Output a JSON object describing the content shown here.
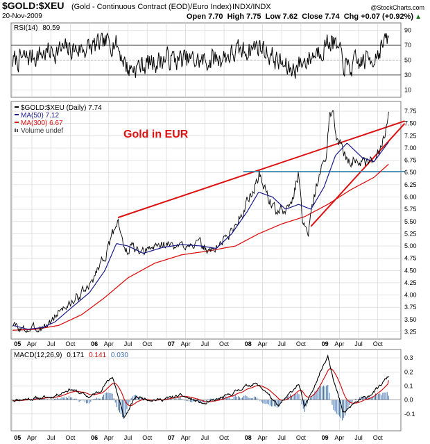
{
  "header": {
    "symbol": "$GOLD:$XEU",
    "description": "(Gold - Continuous Contract (EOD)/Euro Index)",
    "exchange": "INDX/INDX",
    "date": "20-Nov-2009",
    "credit": "@StockCharts.com",
    "quote_line": "Open 7.70  High 7.75  Low 7.62  Close 7.74  Chg +0.07 (+0.92%)",
    "quote_arrow": "▲"
  },
  "colors": {
    "price": "#000000",
    "ma50": "#1a1a8c",
    "ma300": "#dd1111",
    "trendline": "#dd1111",
    "support_line": "#3a8cb5",
    "rsi_bands": "#555555",
    "macd_line": "#000000",
    "signal_line": "#cc1111",
    "histogram": "#3d6fb0",
    "grid": "#d0d0d0",
    "annotation": "#dd1111"
  },
  "chart_data": [
    {
      "type": "line",
      "panel": "rsi",
      "label": "RSI(14)",
      "value_label": "80.59",
      "ylim": [
        0,
        100
      ],
      "yticks": [
        10,
        30,
        50,
        70,
        90
      ],
      "bands": [
        30,
        70
      ],
      "seed": 7,
      "anchors": [
        [
          2005.0,
          48
        ],
        [
          2005.5,
          62
        ],
        [
          2006.0,
          66
        ],
        [
          2006.33,
          76
        ],
        [
          2006.5,
          38
        ],
        [
          2007.0,
          52
        ],
        [
          2007.5,
          48
        ],
        [
          2008.0,
          62
        ],
        [
          2008.2,
          70
        ],
        [
          2008.6,
          36
        ],
        [
          2008.85,
          52
        ],
        [
          2009.15,
          78
        ],
        [
          2009.35,
          38
        ],
        [
          2009.7,
          55
        ],
        [
          2009.89,
          80.59
        ]
      ]
    },
    {
      "type": "line",
      "panel": "price",
      "title": "Gold in EUR",
      "legend": [
        {
          "label": "$GOLD:$XEU (Daily) 7.74",
          "color_key": "price"
        },
        {
          "label": "MA(50) 7.12",
          "color_key": "ma50"
        },
        {
          "label": "MA(300) 6.67",
          "color_key": "ma300"
        },
        {
          "label": "Volume undef",
          "color_key": "price"
        }
      ],
      "ylim": [
        3.1,
        7.95
      ],
      "yticks": [
        3.25,
        3.5,
        3.75,
        4.0,
        4.25,
        4.5,
        4.75,
        5.0,
        5.25,
        5.5,
        5.75,
        6.0,
        6.25,
        6.5,
        6.75,
        7.0,
        7.25,
        7.5,
        7.75
      ],
      "ytick_labels": [
        "3.25",
        "3.50",
        "3.75",
        "4.00",
        "4.25",
        "4.50",
        "4.75",
        "5.00",
        "5.25",
        "5.50",
        "5.75",
        "6.00",
        "6.25",
        "6.50",
        "6.75",
        "7.00",
        "7.25",
        "7.50",
        "7.75"
      ],
      "series": [
        {
          "name": "$GOLD:$XEU (Daily)",
          "color_key": "price",
          "seed": 3,
          "points": [
            [
              2005.0,
              3.4
            ],
            [
              2005.12,
              3.28
            ],
            [
              2005.25,
              3.3
            ],
            [
              2005.4,
              3.35
            ],
            [
              2005.5,
              3.45
            ],
            [
              2005.62,
              3.72
            ],
            [
              2005.75,
              3.8
            ],
            [
              2005.9,
              4.05
            ],
            [
              2006.0,
              4.15
            ],
            [
              2006.12,
              4.6
            ],
            [
              2006.25,
              4.95
            ],
            [
              2006.37,
              5.58
            ],
            [
              2006.46,
              4.85
            ],
            [
              2006.55,
              5.0
            ],
            [
              2006.67,
              4.8
            ],
            [
              2006.85,
              5.0
            ],
            [
              2007.0,
              5.05
            ],
            [
              2007.15,
              4.95
            ],
            [
              2007.3,
              5.1
            ],
            [
              2007.45,
              5.0
            ],
            [
              2007.58,
              4.88
            ],
            [
              2007.7,
              5.05
            ],
            [
              2007.85,
              5.3
            ],
            [
              2008.0,
              5.75
            ],
            [
              2008.12,
              6.1
            ],
            [
              2008.21,
              6.48
            ],
            [
              2008.3,
              6.1
            ],
            [
              2008.4,
              5.75
            ],
            [
              2008.55,
              5.7
            ],
            [
              2008.63,
              5.9
            ],
            [
              2008.72,
              6.5
            ],
            [
              2008.77,
              5.5
            ],
            [
              2008.85,
              5.35
            ],
            [
              2008.92,
              6.0
            ],
            [
              2009.0,
              6.5
            ],
            [
              2009.08,
              6.8
            ],
            [
              2009.13,
              7.82
            ],
            [
              2009.22,
              7.3
            ],
            [
              2009.33,
              6.8
            ],
            [
              2009.5,
              6.75
            ],
            [
              2009.6,
              6.62
            ],
            [
              2009.7,
              6.7
            ],
            [
              2009.8,
              7.05
            ],
            [
              2009.89,
              7.74
            ]
          ]
        },
        {
          "name": "MA(50)",
          "color_key": "ma50",
          "points": [
            [
              2005.0,
              3.38
            ],
            [
              2005.2,
              3.3
            ],
            [
              2005.4,
              3.34
            ],
            [
              2005.55,
              3.45
            ],
            [
              2005.75,
              3.72
            ],
            [
              2006.0,
              4.05
            ],
            [
              2006.2,
              4.5
            ],
            [
              2006.35,
              5.05
            ],
            [
              2006.5,
              5.0
            ],
            [
              2006.7,
              4.85
            ],
            [
              2006.95,
              4.97
            ],
            [
              2007.2,
              5.03
            ],
            [
              2007.45,
              5.0
            ],
            [
              2007.65,
              4.95
            ],
            [
              2007.85,
              5.25
            ],
            [
              2008.05,
              5.7
            ],
            [
              2008.2,
              6.1
            ],
            [
              2008.38,
              6.0
            ],
            [
              2008.55,
              5.75
            ],
            [
              2008.72,
              5.85
            ],
            [
              2008.88,
              5.75
            ],
            [
              2009.05,
              6.2
            ],
            [
              2009.2,
              6.85
            ],
            [
              2009.35,
              7.1
            ],
            [
              2009.55,
              6.8
            ],
            [
              2009.7,
              6.72
            ],
            [
              2009.89,
              7.12
            ]
          ]
        },
        {
          "name": "MA(300)",
          "color_key": "ma300",
          "points": [
            [
              2005.0,
              3.28
            ],
            [
              2005.3,
              3.3
            ],
            [
              2005.6,
              3.38
            ],
            [
              2005.9,
              3.6
            ],
            [
              2006.2,
              3.95
            ],
            [
              2006.5,
              4.35
            ],
            [
              2006.85,
              4.65
            ],
            [
              2007.2,
              4.82
            ],
            [
              2007.55,
              4.9
            ],
            [
              2007.9,
              5.0
            ],
            [
              2008.2,
              5.25
            ],
            [
              2008.5,
              5.45
            ],
            [
              2008.8,
              5.6
            ],
            [
              2009.1,
              5.85
            ],
            [
              2009.4,
              6.15
            ],
            [
              2009.7,
              6.4
            ],
            [
              2009.89,
              6.67
            ]
          ]
        }
      ],
      "trendlines": [
        {
          "name": "upper-trendline",
          "from": [
            2006.37,
            5.58
          ],
          "to": [
            2010.1,
            7.55
          ]
        },
        {
          "name": "lower-trendline",
          "from": [
            2008.88,
            5.4
          ],
          "to": [
            2010.1,
            7.5
          ]
        },
        {
          "name": "support-line",
          "from": [
            2008.0,
            6.52
          ],
          "to": [
            2010.1,
            6.52
          ],
          "color_key": "support_line"
        }
      ],
      "x_tick_labels": [
        {
          "label": "05",
          "t": 2005.0,
          "bold": true
        },
        {
          "label": "Apr",
          "t": 2005.25
        },
        {
          "label": "Jul",
          "t": 2005.5
        },
        {
          "label": "Oct",
          "t": 2005.75
        },
        {
          "label": "06",
          "t": 2006.0,
          "bold": true
        },
        {
          "label": "Apr",
          "t": 2006.25
        },
        {
          "label": "Jul",
          "t": 2006.5
        },
        {
          "label": "Oct",
          "t": 2006.75
        },
        {
          "label": "07",
          "t": 2007.0,
          "bold": true
        },
        {
          "label": "Apr",
          "t": 2007.25
        },
        {
          "label": "Jul",
          "t": 2007.5
        },
        {
          "label": "Oct",
          "t": 2007.75
        },
        {
          "label": "08",
          "t": 2008.0,
          "bold": true
        },
        {
          "label": "Apr",
          "t": 2008.25
        },
        {
          "label": "Jul",
          "t": 2008.5
        },
        {
          "label": "Oct",
          "t": 2008.75
        },
        {
          "label": "09",
          "t": 2009.0,
          "bold": true
        },
        {
          "label": "Apr",
          "t": 2009.25
        },
        {
          "label": "Jul",
          "t": 2009.5
        },
        {
          "label": "Oct",
          "t": 2009.75
        }
      ],
      "xlim": [
        2004.98,
        2010.05
      ]
    },
    {
      "type": "line",
      "panel": "macd",
      "label": "MACD(12,26,9)",
      "values_text": [
        "0.171",
        "0.141",
        "0.030"
      ],
      "ylim": [
        -0.22,
        0.36
      ],
      "yticks": [
        -0.1,
        0.0,
        0.1,
        0.2,
        0.3
      ],
      "ytick_labels": [
        "-0.1",
        "0.0",
        "0.1",
        "0.2",
        "0.3"
      ],
      "seed": 11,
      "anchors": [
        [
          2005.0,
          0.0
        ],
        [
          2005.5,
          0.02
        ],
        [
          2005.75,
          0.08
        ],
        [
          2006.0,
          0.02
        ],
        [
          2006.12,
          0.06
        ],
        [
          2006.3,
          0.17
        ],
        [
          2006.45,
          -0.13
        ],
        [
          2006.6,
          0.02
        ],
        [
          2006.9,
          0.0
        ],
        [
          2007.2,
          0.03
        ],
        [
          2007.5,
          -0.03
        ],
        [
          2007.8,
          0.03
        ],
        [
          2008.0,
          0.09
        ],
        [
          2008.15,
          0.12
        ],
        [
          2008.3,
          0.06
        ],
        [
          2008.45,
          -0.05
        ],
        [
          2008.6,
          0.04
        ],
        [
          2008.72,
          0.12
        ],
        [
          2008.8,
          -0.06
        ],
        [
          2008.92,
          0.1
        ],
        [
          2009.1,
          0.32
        ],
        [
          2009.2,
          0.1
        ],
        [
          2009.3,
          -0.1
        ],
        [
          2009.45,
          -0.02
        ],
        [
          2009.6,
          0.02
        ],
        [
          2009.75,
          0.08
        ],
        [
          2009.89,
          0.171
        ]
      ]
    }
  ]
}
